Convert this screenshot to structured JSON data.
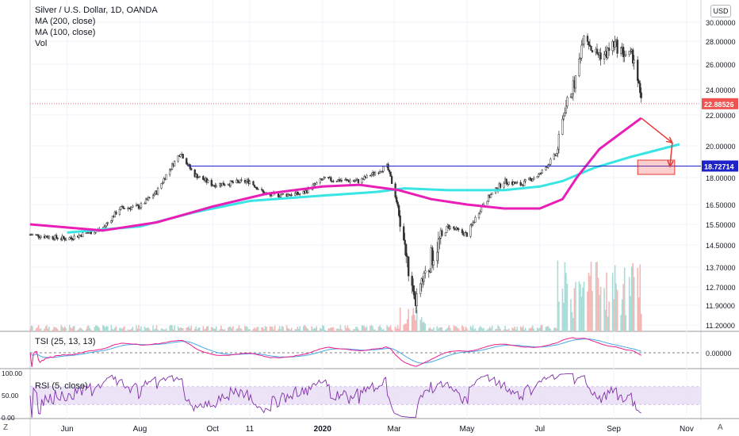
{
  "header": {
    "title": "Silver / U.S. Dollar, 1D, OANDA",
    "indicators": [
      "MA (200, close)",
      "MA (100, close)",
      "Vol"
    ],
    "currency_badge": "USD"
  },
  "price_axis": {
    "ticks": [
      "30.00000",
      "28.00000",
      "26.00000",
      "24.00000",
      "22.00000",
      "20.00000",
      "18.00000",
      "16.50000",
      "15.50000",
      "14.50000",
      "13.70000",
      "12.70000",
      "11.90000",
      "11.20000"
    ],
    "last_price": "22.88526",
    "level_price": "18.72714"
  },
  "time_axis": {
    "ticks": [
      "Jun",
      "Aug",
      "Oct",
      "11",
      "2020",
      "Mar",
      "May",
      "Jul",
      "Sep",
      "Nov"
    ]
  },
  "tsi": {
    "label": "TSI (25, 13, 13)",
    "ticks": [
      "0.00000"
    ]
  },
  "rsi": {
    "label": "RSI (5, close)",
    "ticks": [
      "100.00",
      "50.00",
      "0.00"
    ]
  },
  "corners": {
    "left": "Z",
    "right": "A"
  },
  "colors": {
    "up": "#26a69a",
    "down": "#ef5350",
    "candle_body": "#333333",
    "ma200": "#e91eb7",
    "ma100": "#38e5e5",
    "level": "#1e22c9",
    "arrow": "#e53935",
    "tsi_line": "#e91e8c",
    "tsi_signal": "#4aa8e8",
    "rsi_line": "#7e2fa8",
    "rsi_band": "#e9dcf5"
  },
  "chart_data": {
    "type": "candlestick",
    "symbol": "XAGUSD",
    "interval": "1D",
    "x_range": [
      "2019-05",
      "2020-10"
    ],
    "approx_closes": [
      {
        "date": "2019-05-01",
        "close": 15.0
      },
      {
        "date": "2019-06-01",
        "close": 14.8
      },
      {
        "date": "2019-07-01",
        "close": 15.3
      },
      {
        "date": "2019-07-15",
        "close": 16.3
      },
      {
        "date": "2019-08-01",
        "close": 16.4
      },
      {
        "date": "2019-08-15",
        "close": 17.2
      },
      {
        "date": "2019-09-04",
        "close": 19.6
      },
      {
        "date": "2019-09-15",
        "close": 18.2
      },
      {
        "date": "2019-10-01",
        "close": 17.6
      },
      {
        "date": "2019-11-01",
        "close": 17.8
      },
      {
        "date": "2019-11-15",
        "close": 17.0
      },
      {
        "date": "2019-12-15",
        "close": 17.1
      },
      {
        "date": "2020-01-01",
        "close": 17.9
      },
      {
        "date": "2020-02-01",
        "close": 17.8
      },
      {
        "date": "2020-02-24",
        "close": 18.7
      },
      {
        "date": "2020-03-02",
        "close": 17.0
      },
      {
        "date": "2020-03-18",
        "close": 11.9
      },
      {
        "date": "2020-04-01",
        "close": 14.0
      },
      {
        "date": "2020-04-15",
        "close": 15.4
      },
      {
        "date": "2020-05-01",
        "close": 15.0
      },
      {
        "date": "2020-05-15",
        "close": 16.6
      },
      {
        "date": "2020-06-01",
        "close": 17.8
      },
      {
        "date": "2020-06-15",
        "close": 17.6
      },
      {
        "date": "2020-07-01",
        "close": 18.2
      },
      {
        "date": "2020-07-15",
        "close": 19.5
      },
      {
        "date": "2020-07-22",
        "close": 22.5
      },
      {
        "date": "2020-08-01",
        "close": 25.0
      },
      {
        "date": "2020-08-07",
        "close": 29.0
      },
      {
        "date": "2020-08-15",
        "close": 27.0
      },
      {
        "date": "2020-08-25",
        "close": 26.8
      },
      {
        "date": "2020-09-01",
        "close": 27.8
      },
      {
        "date": "2020-09-10",
        "close": 26.9
      },
      {
        "date": "2020-09-18",
        "close": 26.6
      },
      {
        "date": "2020-09-24",
        "close": 22.9
      }
    ],
    "ma200": [
      {
        "date": "2019-05-01",
        "value": 15.5
      },
      {
        "date": "2019-07-01",
        "value": 15.2
      },
      {
        "date": "2019-08-15",
        "value": 15.6
      },
      {
        "date": "2019-10-01",
        "value": 16.4
      },
      {
        "date": "2019-11-15",
        "value": 17.1
      },
      {
        "date": "2020-01-01",
        "value": 17.5
      },
      {
        "date": "2020-02-01",
        "value": 17.6
      },
      {
        "date": "2020-03-05",
        "value": 17.3
      },
      {
        "date": "2020-04-01",
        "value": 16.8
      },
      {
        "date": "2020-05-01",
        "value": 16.5
      },
      {
        "date": "2020-06-01",
        "value": 16.3
      },
      {
        "date": "2020-07-01",
        "value": 16.3
      },
      {
        "date": "2020-07-20",
        "value": 16.8
      },
      {
        "date": "2020-08-01",
        "value": 18.0
      },
      {
        "date": "2020-08-20",
        "value": 19.8
      },
      {
        "date": "2020-09-24",
        "value": 21.8
      }
    ],
    "ma100": [
      {
        "date": "2019-06-01",
        "value": 15.1
      },
      {
        "date": "2019-08-01",
        "value": 15.4
      },
      {
        "date": "2019-09-15",
        "value": 16.1
      },
      {
        "date": "2019-11-01",
        "value": 16.7
      },
      {
        "date": "2020-01-01",
        "value": 17.0
      },
      {
        "date": "2020-02-15",
        "value": 17.2
      },
      {
        "date": "2020-03-10",
        "value": 17.4
      },
      {
        "date": "2020-04-15",
        "value": 17.3
      },
      {
        "date": "2020-06-01",
        "value": 17.3
      },
      {
        "date": "2020-07-01",
        "value": 17.5
      },
      {
        "date": "2020-07-20",
        "value": 17.8
      },
      {
        "date": "2020-08-15",
        "value": 18.6
      },
      {
        "date": "2020-09-15",
        "value": 19.3
      },
      {
        "date": "2020-10-26",
        "value": 20.1
      }
    ],
    "horizontal_level": 18.72714,
    "last_price": 22.88526,
    "annotations": [
      {
        "type": "arrow",
        "from": {
          "date": "2020-09-24",
          "value": 21.8
        },
        "to": {
          "date": "2020-10-20",
          "value": 20.2
        }
      },
      {
        "type": "arrow",
        "from": {
          "date": "2020-10-20",
          "value": 20.2
        },
        "to": {
          "date": "2020-10-18",
          "value": 18.7
        }
      },
      {
        "type": "box",
        "x": [
          "2020-09-21",
          "2020-10-22"
        ],
        "y": [
          18.2,
          19.1
        ]
      }
    ]
  }
}
